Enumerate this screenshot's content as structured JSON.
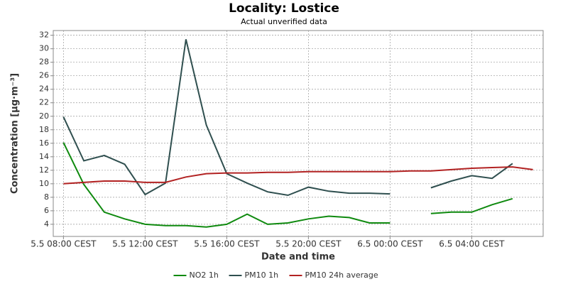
{
  "chart_data": {
    "type": "line",
    "title": "Locality: Lostice",
    "subtitle": "Actual unverified data",
    "x_label": "Date and time",
    "y_label": "Concentration [µg·m⁻³]",
    "categories": [
      "5.5 08:00 CEST",
      null,
      null,
      null,
      "5.5 12:00 CEST",
      null,
      null,
      null,
      "5.5 16:00 CEST",
      null,
      null,
      null,
      "5.5 20:00 CEST",
      null,
      null,
      null,
      "6.5 00:00 CEST",
      null,
      null,
      null,
      "6.5 04:00 CEST",
      null,
      null,
      null
    ],
    "series": [
      {
        "name": "NO2 1h",
        "color": "#0f8a0f",
        "values": [
          16.1,
          9.9,
          5.8,
          4.8,
          4.0,
          3.8,
          3.8,
          3.6,
          4.0,
          5.5,
          4.0,
          4.2,
          4.8,
          5.2,
          5.0,
          4.2,
          4.2,
          null,
          5.6,
          5.8,
          5.8,
          6.9,
          7.8,
          null
        ]
      },
      {
        "name": "PM10 1h",
        "color": "#2f4f4f",
        "values": [
          19.9,
          13.4,
          14.2,
          12.9,
          8.4,
          10.1,
          31.4,
          18.7,
          11.5,
          10.1,
          8.8,
          8.3,
          9.5,
          8.9,
          8.6,
          8.6,
          8.5,
          null,
          9.4,
          10.4,
          11.2,
          10.8,
          13.0,
          null
        ]
      },
      {
        "name": "PM10 24h average",
        "color": "#b22222",
        "values": [
          10.0,
          10.2,
          10.4,
          10.4,
          10.2,
          10.2,
          11.0,
          11.5,
          11.6,
          11.6,
          11.7,
          11.7,
          11.8,
          11.8,
          11.8,
          11.8,
          11.8,
          11.9,
          11.9,
          12.1,
          12.3,
          12.4,
          12.5,
          12.1
        ]
      }
    ],
    "ylim": [
      2.2,
      32.7
    ],
    "yticks": [
      4,
      6,
      8,
      10,
      12,
      14,
      16,
      18,
      20,
      22,
      24,
      26,
      28,
      30,
      32
    ],
    "grid": true,
    "legend": "bottom"
  }
}
